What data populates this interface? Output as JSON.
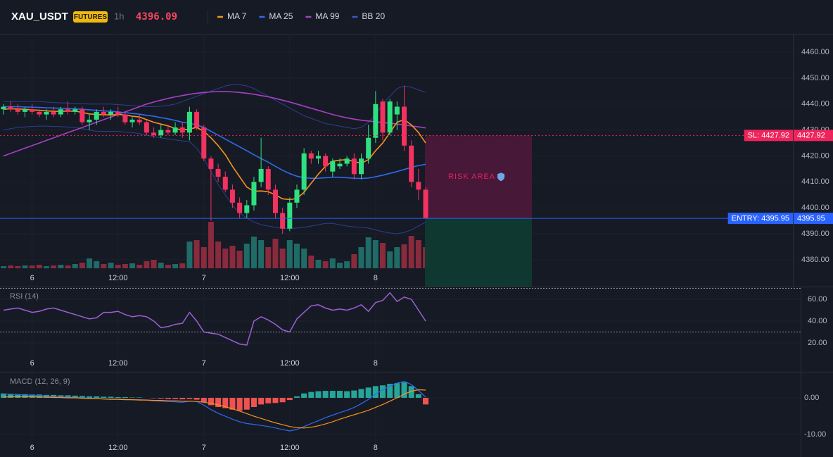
{
  "chart_data": [
    {
      "type": "candlestick",
      "title": "XAU_USDT",
      "badge": "FUTURES",
      "interval": "1h",
      "categories": [
        null,
        null,
        null,
        null,
        "6",
        null,
        null,
        null,
        null,
        null,
        null,
        null,
        null,
        null,
        null,
        null,
        "12:00",
        null,
        null,
        null,
        null,
        null,
        null,
        null,
        null,
        null,
        null,
        null,
        "7",
        null,
        null,
        null,
        null,
        null,
        null,
        null,
        null,
        null,
        null,
        null,
        "12:00",
        null,
        null,
        null,
        null,
        null,
        null,
        null,
        null,
        null,
        null,
        null,
        "8",
        null,
        null,
        null,
        null,
        null,
        null,
        null
      ],
      "open": [
        4438,
        4439,
        4438,
        4437,
        4438,
        4437,
        4436,
        4437,
        4436,
        4438,
        4437,
        4438,
        4433,
        4434,
        4437,
        4436,
        4437,
        4436,
        4433,
        4434,
        4433,
        4429,
        4428,
        4430,
        4429,
        4431,
        4429,
        4437,
        4431,
        4419,
        4415,
        4412,
        4407,
        4402,
        4398,
        4401,
        4410,
        4415,
        4407,
        4398,
        4392,
        4402,
        4407,
        4421,
        4419,
        4420,
        4414,
        4416,
        4417,
        4419,
        4413,
        4419,
        4427,
        4441,
        4429,
        4436,
        4439,
        4424,
        4410,
        4407
      ],
      "high": [
        4440,
        4441,
        4440,
        4439,
        4440,
        4438,
        4438,
        4439,
        4439,
        4441,
        4439,
        4439,
        4436,
        4438,
        4439,
        4438,
        4439,
        4437,
        4435,
        4436,
        4434,
        4431,
        4432,
        4432,
        4433,
        4433,
        4439,
        4438,
        4432,
        4420,
        4417,
        4414,
        4409,
        4404,
        4403,
        4412,
        4427,
        4416,
        4409,
        4400,
        4404,
        4409,
        4423,
        4422,
        4422,
        4421,
        4419,
        4419,
        4420,
        4421,
        4421,
        4432,
        4445,
        4442,
        4442,
        4441,
        4447,
        4426,
        4415,
        4408
      ],
      "low": [
        4436,
        4437,
        4436,
        4435,
        4436,
        4435,
        4434,
        4435,
        4435,
        4436,
        4436,
        4432,
        4430,
        4432,
        4435,
        4434,
        4435,
        4432,
        4431,
        4432,
        4428,
        4427,
        4427,
        4428,
        4428,
        4427,
        4426,
        4430,
        4418,
        4395,
        4410,
        4406,
        4400,
        4396,
        4396,
        4399,
        4408,
        4405,
        4396,
        4390,
        4391,
        4400,
        4405,
        4417,
        4417,
        4414,
        4412,
        4415,
        4416,
        4411,
        4411,
        4417,
        4425,
        4426,
        4428,
        4430,
        4422,
        4408,
        4403,
        4396
      ],
      "close": [
        4439,
        4438,
        4437,
        4438,
        4437,
        4436,
        4437,
        4436,
        4438,
        4437,
        4438,
        4433,
        4434,
        4437,
        4436,
        4437,
        4436,
        4433,
        4434,
        4433,
        4429,
        4428,
        4430,
        4429,
        4431,
        4429,
        4437,
        4431,
        4419,
        4415,
        4412,
        4407,
        4402,
        4398,
        4401,
        4410,
        4415,
        4407,
        4398,
        4392,
        4402,
        4407,
        4421,
        4419,
        4420,
        4416,
        4418,
        4417,
        4419,
        4413,
        4419,
        4427,
        4440,
        4429,
        4441,
        4439,
        4424,
        4410,
        4407,
        4396.09
      ],
      "volume": [
        3,
        4,
        3,
        4,
        4,
        5,
        3,
        4,
        5,
        4,
        6,
        8,
        14,
        10,
        6,
        8,
        5,
        6,
        7,
        5,
        10,
        12,
        8,
        5,
        6,
        7,
        38,
        40,
        30,
        66,
        38,
        28,
        32,
        25,
        35,
        45,
        40,
        30,
        42,
        28,
        40,
        35,
        28,
        18,
        12,
        10,
        14,
        8,
        10,
        20,
        30,
        44,
        40,
        36,
        24,
        30,
        34,
        46,
        40,
        30
      ],
      "up_color": "#2ee07f",
      "down_color": "#f2325f",
      "volume_up_color": "#1f6b66",
      "volume_down_color": "#8a2a3d",
      "series": [
        {
          "name": "MA 7",
          "color": "#f7931a",
          "values": [
            4438,
            4438.2,
            4438.1,
            4438,
            4437.8,
            4437.6,
            4437.4,
            4437.2,
            4437.2,
            4437.3,
            4437.3,
            4436.8,
            4436.2,
            4436,
            4435.9,
            4435.8,
            4436,
            4435.8,
            4435.3,
            4435,
            4434,
            4433,
            4432.3,
            4431.6,
            4430.6,
            4430,
            4430.4,
            4431,
            4429.5,
            4427,
            4424,
            4420.5,
            4416,
            4412,
            4408,
            4406.4,
            4406.5,
            4406.2,
            4405,
            4403.5,
            4403.2,
            4403.6,
            4406,
            4409.5,
            4413,
            4416,
            4418,
            4418.4,
            4418.6,
            4417.8,
            4417.2,
            4418.6,
            4422,
            4425,
            4429,
            4433,
            4434,
            4432,
            4429,
            4425
          ]
        },
        {
          "name": "MA 25",
          "color": "#2f6bf0",
          "values": [
            4439,
            4439,
            4439,
            4438.9,
            4438.8,
            4438.7,
            4438.6,
            4438.5,
            4438.4,
            4438.3,
            4438.2,
            4438,
            4437.8,
            4437.6,
            4437.4,
            4437.2,
            4437,
            4436.7,
            4436.4,
            4436.1,
            4435.7,
            4435.3,
            4434.8,
            4434.3,
            4433.7,
            4433,
            4432.6,
            4432,
            4431,
            4429.5,
            4428,
            4426.5,
            4425,
            4423.5,
            4422,
            4420.5,
            4419,
            4417.6,
            4416,
            4414.5,
            4413.2,
            4412.2,
            4411.6,
            4411.4,
            4411.4,
            4411.6,
            4411.8,
            4411.8,
            4411.6,
            4411.4,
            4411.3,
            4411.5,
            4412,
            4412.6,
            4413.3,
            4414,
            4414.8,
            4415.6,
            4416.3,
            4416.8
          ]
        },
        {
          "name": "MA 99",
          "color": "#a83fc4",
          "values": [
            4420,
            4421,
            4422,
            4423,
            4424,
            4425,
            4426,
            4427,
            4428,
            4429,
            4430,
            4431,
            4432,
            4433,
            4434,
            4435,
            4436,
            4437,
            4438,
            4439,
            4440,
            4440.8,
            4441.5,
            4442.2,
            4442.8,
            4443.3,
            4443.8,
            4444.2,
            4444.5,
            4444.7,
            4444.8,
            4444.8,
            4444.7,
            4444.5,
            4444.2,
            4443.8,
            4443.3,
            4442.8,
            4442.2,
            4441.5,
            4440.8,
            4440,
            4439.2,
            4438.4,
            4437.6,
            4436.8,
            4436,
            4435.3,
            4434.7,
            4434.2,
            4433.8,
            4433.5,
            4433.2,
            4432.9,
            4432.6,
            4432.3,
            4432,
            4431.6,
            4431.2,
            4430.8
          ]
        },
        {
          "name": "BB 20",
          "color": "#2c3f8f",
          "upper": [
            4441,
            4441,
            4441,
            4441,
            4441,
            4441,
            4440.8,
            4440.6,
            4440.5,
            4440.4,
            4440.3,
            4440.2,
            4440,
            4440,
            4440,
            4440,
            4439.8,
            4439.6,
            4439.4,
            4439.2,
            4439,
            4439,
            4439.2,
            4439.5,
            4440,
            4441,
            4442,
            4443,
            4444,
            4445,
            4446,
            4447,
            4447.5,
            4447.5,
            4447,
            4446,
            4444.5,
            4443,
            4441.5,
            4440,
            4438.5,
            4437,
            4435.5,
            4434.5,
            4433.5,
            4432.5,
            4432,
            4431.5,
            4431,
            4430.5,
            4431,
            4433,
            4436,
            4440,
            4443,
            4446,
            4447,
            4446.5,
            4445.5,
            4444.5
          ],
          "lower": [
            4430,
            4430.5,
            4431,
            4431.2,
            4431.4,
            4431.5,
            4431.5,
            4431.4,
            4431.3,
            4431.2,
            4431,
            4430.5,
            4430,
            4429.5,
            4429.5,
            4429.5,
            4429.5,
            4429.2,
            4429,
            4428.6,
            4428,
            4427.5,
            4427,
            4426.6,
            4426.2,
            4425.8,
            4425.5,
            4423,
            4419,
            4414,
            4409,
            4405,
            4401,
            4398,
            4396,
            4394.5,
            4393.5,
            4393,
            4392.5,
            4392,
            4392,
            4392.2,
            4392.5,
            4393,
            4393.5,
            4394,
            4394,
            4393.5,
            4393,
            4392.7,
            4392.5,
            4392.2,
            4391.5,
            4390.8,
            4390.3,
            4390,
            4390.5,
            4391.5,
            4393,
            4394.5
          ]
        }
      ],
      "ylim": [
        4376.7,
        4467.1
      ],
      "yticks": [
        {
          "value": 4460,
          "label": "4460.00"
        },
        {
          "value": 4450,
          "label": "4450.00"
        },
        {
          "value": 4440,
          "label": "4440.00"
        },
        {
          "value": 4430,
          "label": "4430.00"
        },
        {
          "value": 4420,
          "label": "4420.00"
        },
        {
          "value": 4410,
          "label": "4410.00"
        },
        {
          "value": 4400,
          "label": "4400.00"
        },
        {
          "value": 4390,
          "label": "4390.00"
        },
        {
          "value": 4380,
          "label": "4380.00"
        }
      ],
      "levels": [
        {
          "label": "SL: 4427.92",
          "value": 4427.92,
          "color": "#f0245c"
        },
        {
          "label": "ENTRY: 4395.95",
          "value": 4395.95,
          "color": "#2962ff"
        }
      ],
      "zone_label": "RISK AREA"
    },
    {
      "type": "line",
      "title": "RSI (14)",
      "color": "#9c5fd6",
      "values": [
        50,
        51,
        52,
        50,
        48,
        49,
        51,
        52,
        50,
        48,
        46,
        44,
        42,
        43,
        48,
        48,
        49,
        46,
        44,
        45,
        44,
        40,
        34,
        35,
        37,
        38,
        48,
        40,
        30,
        29,
        28,
        25,
        22,
        19,
        18,
        40,
        44,
        41,
        37,
        32,
        30,
        42,
        48,
        54,
        55,
        52,
        50,
        51,
        50,
        52,
        55,
        49,
        57,
        59,
        66,
        58,
        62,
        60,
        50,
        40
      ],
      "ylim": [
        10,
        70
      ],
      "yticks": [
        {
          "value": 60,
          "label": "60.00"
        },
        {
          "value": 40,
          "label": "40.00"
        },
        {
          "value": 20,
          "label": "20.00"
        }
      ],
      "levels": [
        70,
        30
      ]
    },
    {
      "type": "macd",
      "title": "MACD (12, 26, 9)",
      "up_color": "#26a69a",
      "down_color": "#ef5350",
      "values": [
        1.2,
        1.1,
        1,
        1,
        0.9,
        0.9,
        0.8,
        0.8,
        0.7,
        0.7,
        0.6,
        0.5,
        0.4,
        0.4,
        0.3,
        0.3,
        0.2,
        0.2,
        0.1,
        0.1,
        0,
        -0.1,
        -0.2,
        -0.3,
        -0.3,
        -0.4,
        -0.3,
        -0.5,
        -1.2,
        -2,
        -2.5,
        -2.8,
        -3.2,
        -3.5,
        -3.2,
        -2.5,
        -1.8,
        -1.5,
        -1.4,
        -1.2,
        -0.6,
        0.4,
        1.2,
        1.6,
        1.8,
        1.9,
        1.9,
        1.9,
        1.8,
        2,
        2.4,
        2.8,
        3.2,
        3.4,
        3.8,
        4,
        4.2,
        3.2,
        1,
        -1.8
      ],
      "series": [
        {
          "color": "#2f6bf0",
          "values": [
            1,
            1,
            0.9,
            0.8,
            0.7,
            0.6,
            0.5,
            0.4,
            0.3,
            0.2,
            0.1,
            0,
            -0.1,
            -0.2,
            -0.3,
            -0.3,
            -0.3,
            -0.4,
            -0.5,
            -0.5,
            -0.6,
            -0.8,
            -0.9,
            -1,
            -1.1,
            -1.2,
            -0.9,
            -1,
            -2,
            -3.2,
            -4.2,
            -5,
            -5.8,
            -6.5,
            -7,
            -7.2,
            -7.5,
            -7.8,
            -8.2,
            -8.6,
            -9,
            -8.6,
            -7.8,
            -7,
            -6.2,
            -5.4,
            -4.7,
            -4,
            -3.4,
            -2.6,
            -1.6,
            -0.4,
            1,
            2.2,
            3.2,
            4,
            4.5,
            3.6,
            2,
            0.2
          ]
        },
        {
          "color": "#f7931a",
          "values": [
            0.2,
            0.3,
            0.3,
            0.3,
            0.3,
            0.2,
            0.2,
            0.1,
            0.1,
            0,
            0,
            -0.1,
            -0.2,
            -0.2,
            -0.3,
            -0.4,
            -0.4,
            -0.5,
            -0.5,
            -0.6,
            -0.6,
            -0.7,
            -0.7,
            -0.8,
            -0.8,
            -0.9,
            -0.9,
            -1,
            -1.2,
            -1.5,
            -1.9,
            -2.4,
            -3,
            -3.6,
            -4.3,
            -5,
            -5.6,
            -6.2,
            -6.8,
            -7.3,
            -7.8,
            -8.1,
            -8.2,
            -8,
            -7.6,
            -7.1,
            -6.5,
            -5.8,
            -5.2,
            -4.6,
            -4,
            -3.4,
            -2.6,
            -1.8,
            -0.9,
            0,
            1,
            1.8,
            2.2,
            2.1
          ]
        }
      ],
      "ylim": [
        -11.3,
        6.7
      ],
      "yticks": [
        {
          "value": 0,
          "label": "0.00"
        },
        {
          "value": -10,
          "label": "-10.00"
        }
      ]
    }
  ]
}
